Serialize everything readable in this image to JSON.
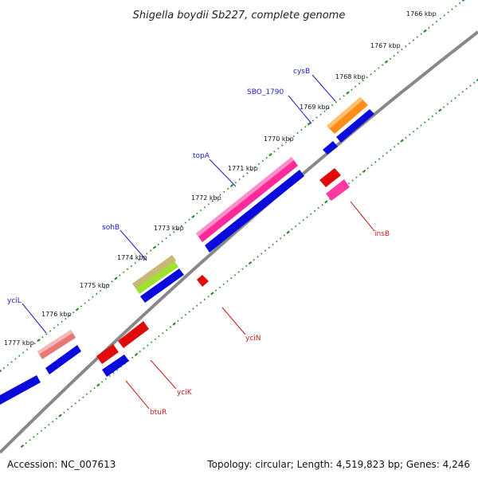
{
  "title": "Shigella boydii Sb227, complete genome",
  "footer": {
    "accession": "Accession: NC_007613",
    "summary": "Topology: circular; Length: 4,519,823 bp; Genes: 4,246"
  },
  "scale": {
    "unit": "kbp",
    "ticks": [
      {
        "label": "1766 kbp"
      },
      {
        "label": "1767 kbp"
      },
      {
        "label": "1768 kbp"
      },
      {
        "label": "1769 kbp"
      },
      {
        "label": "1770 kbp"
      },
      {
        "label": "1771 kbp"
      },
      {
        "label": "1772 kbp"
      },
      {
        "label": "1773 kbp"
      },
      {
        "label": "1774 kbp"
      },
      {
        "label": "1775 kbp"
      },
      {
        "label": "1776 kbp"
      },
      {
        "label": "1777 kbp"
      }
    ]
  },
  "gene_labels": [
    {
      "name": "cysB",
      "strand": "forward"
    },
    {
      "name": "SBO_1790",
      "strand": "forward"
    },
    {
      "name": "topA",
      "strand": "forward"
    },
    {
      "name": "sohB",
      "strand": "forward"
    },
    {
      "name": "yciL",
      "strand": "forward"
    },
    {
      "name": "insB",
      "strand": "reverse"
    },
    {
      "name": "yciN",
      "strand": "reverse"
    },
    {
      "name": "yciK",
      "strand": "reverse"
    },
    {
      "name": "btuR",
      "strand": "reverse"
    }
  ],
  "colors": {
    "backbone": "#888888",
    "tick": "#2e8b2e",
    "forward_cds": "#0a0adc",
    "reverse_cds": "#e00a0a",
    "cysB": "#ff8c1a",
    "topA": "#ff2a9a",
    "sohB": "#a0e030",
    "sohB_upper": "#c8b878",
    "yciL": "#e87878",
    "insB": "#ff3aa0"
  }
}
